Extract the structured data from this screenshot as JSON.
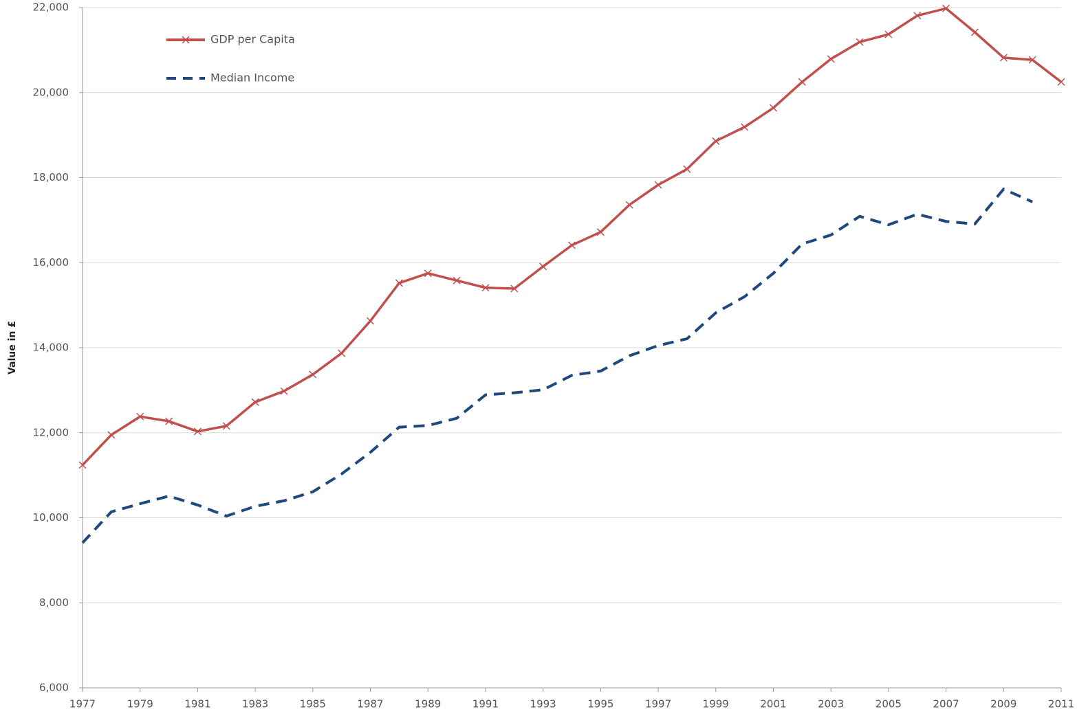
{
  "chart_data": {
    "type": "line",
    "y_label": "Value in £",
    "x": [
      1977,
      1978,
      1979,
      1980,
      1981,
      1982,
      1983,
      1984,
      1985,
      1986,
      1987,
      1988,
      1989,
      1990,
      1991,
      1992,
      1993,
      1994,
      1995,
      1996,
      1997,
      1998,
      1999,
      2000,
      2001,
      2002,
      2003,
      2004,
      2005,
      2006,
      2007,
      2008,
      2009,
      2010,
      2011
    ],
    "series": [
      {
        "name": "GDP per Capita",
        "color": "#c0504d",
        "marker": "x",
        "dash": false,
        "values": [
          11240,
          11950,
          12380,
          12270,
          12030,
          12160,
          12720,
          12980,
          13370,
          13870,
          14630,
          15520,
          15750,
          15580,
          15410,
          15390,
          15910,
          16410,
          16720,
          17360,
          17830,
          18200,
          18860,
          19190,
          19640,
          20250,
          20790,
          21190,
          21370,
          21810,
          21980,
          21420,
          20820,
          20770,
          20250
        ]
      },
      {
        "name": "Median Income",
        "color": "#1f497d",
        "marker": null,
        "dash": true,
        "values": [
          9410,
          10140,
          10330,
          10510,
          10300,
          10040,
          10270,
          10400,
          10610,
          11030,
          11540,
          12130,
          12170,
          12340,
          12890,
          12940,
          13010,
          13350,
          13450,
          13810,
          14050,
          14210,
          14820,
          15200,
          15750,
          16440,
          16650,
          17090,
          16890,
          17140,
          16970,
          16910,
          17730,
          17430,
          null
        ]
      }
    ],
    "xlim": [
      1977,
      2011
    ],
    "xticks": [
      1977,
      1979,
      1981,
      1983,
      1985,
      1987,
      1989,
      1991,
      1993,
      1995,
      1997,
      1999,
      2001,
      2003,
      2005,
      2007,
      2009,
      2011
    ],
    "ylim": [
      6000,
      22000
    ],
    "yticks": [
      {
        "value": 6000,
        "label": "6,000"
      },
      {
        "value": 8000,
        "label": "8,000"
      },
      {
        "value": 10000,
        "label": "10,000"
      },
      {
        "value": 12000,
        "label": "12,000"
      },
      {
        "value": 14000,
        "label": "14,000"
      },
      {
        "value": 16000,
        "label": "16,000"
      },
      {
        "value": 18000,
        "label": "18,000"
      },
      {
        "value": 20000,
        "label": "20,000"
      },
      {
        "value": 22000,
        "label": "22,000"
      }
    ],
    "grid": true,
    "legend": "top-left"
  }
}
